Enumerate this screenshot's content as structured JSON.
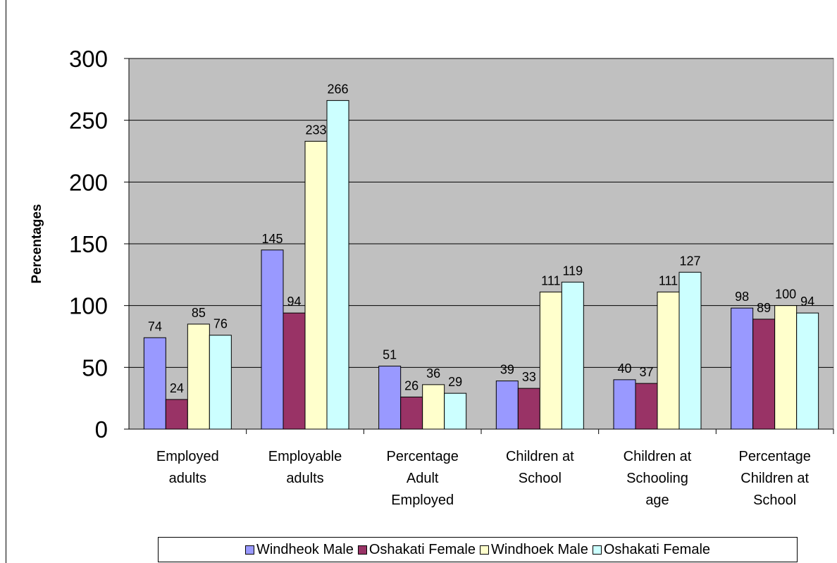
{
  "chart_data": {
    "type": "bar",
    "title": "",
    "xlabel": "",
    "ylabel": "Percentages",
    "ylim": [
      0,
      300
    ],
    "yticks": [
      0,
      50,
      100,
      150,
      200,
      250,
      300
    ],
    "grid": true,
    "legend_position": "bottom",
    "plot_background": "#c0c0c0",
    "categories": [
      [
        "Employed",
        "adults"
      ],
      [
        "Employable",
        "adults"
      ],
      [
        "Percentage",
        "Adult",
        "Employed"
      ],
      [
        "Children at",
        "School"
      ],
      [
        "Children at",
        "Schooling",
        "age"
      ],
      [
        "Percentage",
        "Children at",
        "School"
      ]
    ],
    "series": [
      {
        "name": "Windheok Male",
        "color": "#9999ff",
        "values": [
          74,
          145,
          51,
          39,
          40,
          98
        ]
      },
      {
        "name": "Oshakati Female",
        "color": "#993366",
        "values": [
          24,
          94,
          26,
          33,
          37,
          89
        ]
      },
      {
        "name": "Windhoek Male",
        "color": "#ffffcc",
        "values": [
          85,
          233,
          36,
          111,
          111,
          100
        ]
      },
      {
        "name": "Oshakati Female",
        "color": "#ccffff",
        "values": [
          76,
          266,
          29,
          119,
          127,
          94
        ]
      }
    ]
  }
}
